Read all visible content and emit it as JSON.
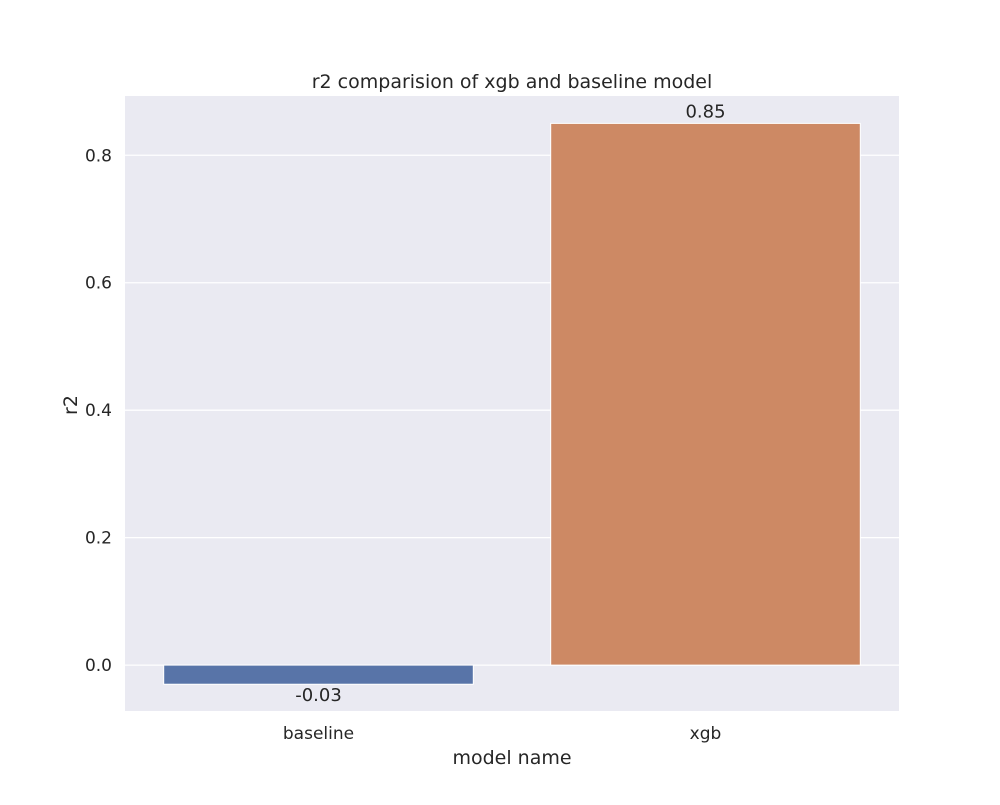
{
  "chart_data": {
    "type": "bar",
    "title": "r2 comparision of xgb and baseline model",
    "xlabel": "model name",
    "ylabel": "r2",
    "categories": [
      "baseline",
      "xgb"
    ],
    "values": [
      -0.03,
      0.85
    ],
    "data_labels": [
      "-0.03",
      "0.85"
    ],
    "bar_colors": [
      "#5874a8",
      "#cd8964"
    ],
    "ylim": [
      -0.072,
      0.893
    ],
    "yticks": [
      0.0,
      0.2,
      0.4,
      0.6,
      0.8
    ],
    "ytick_labels": [
      "0.0",
      "0.2",
      "0.4",
      "0.6",
      "0.8"
    ],
    "grid": true,
    "background_color": "#eaeaf2",
    "grid_color": "#ffffff"
  }
}
